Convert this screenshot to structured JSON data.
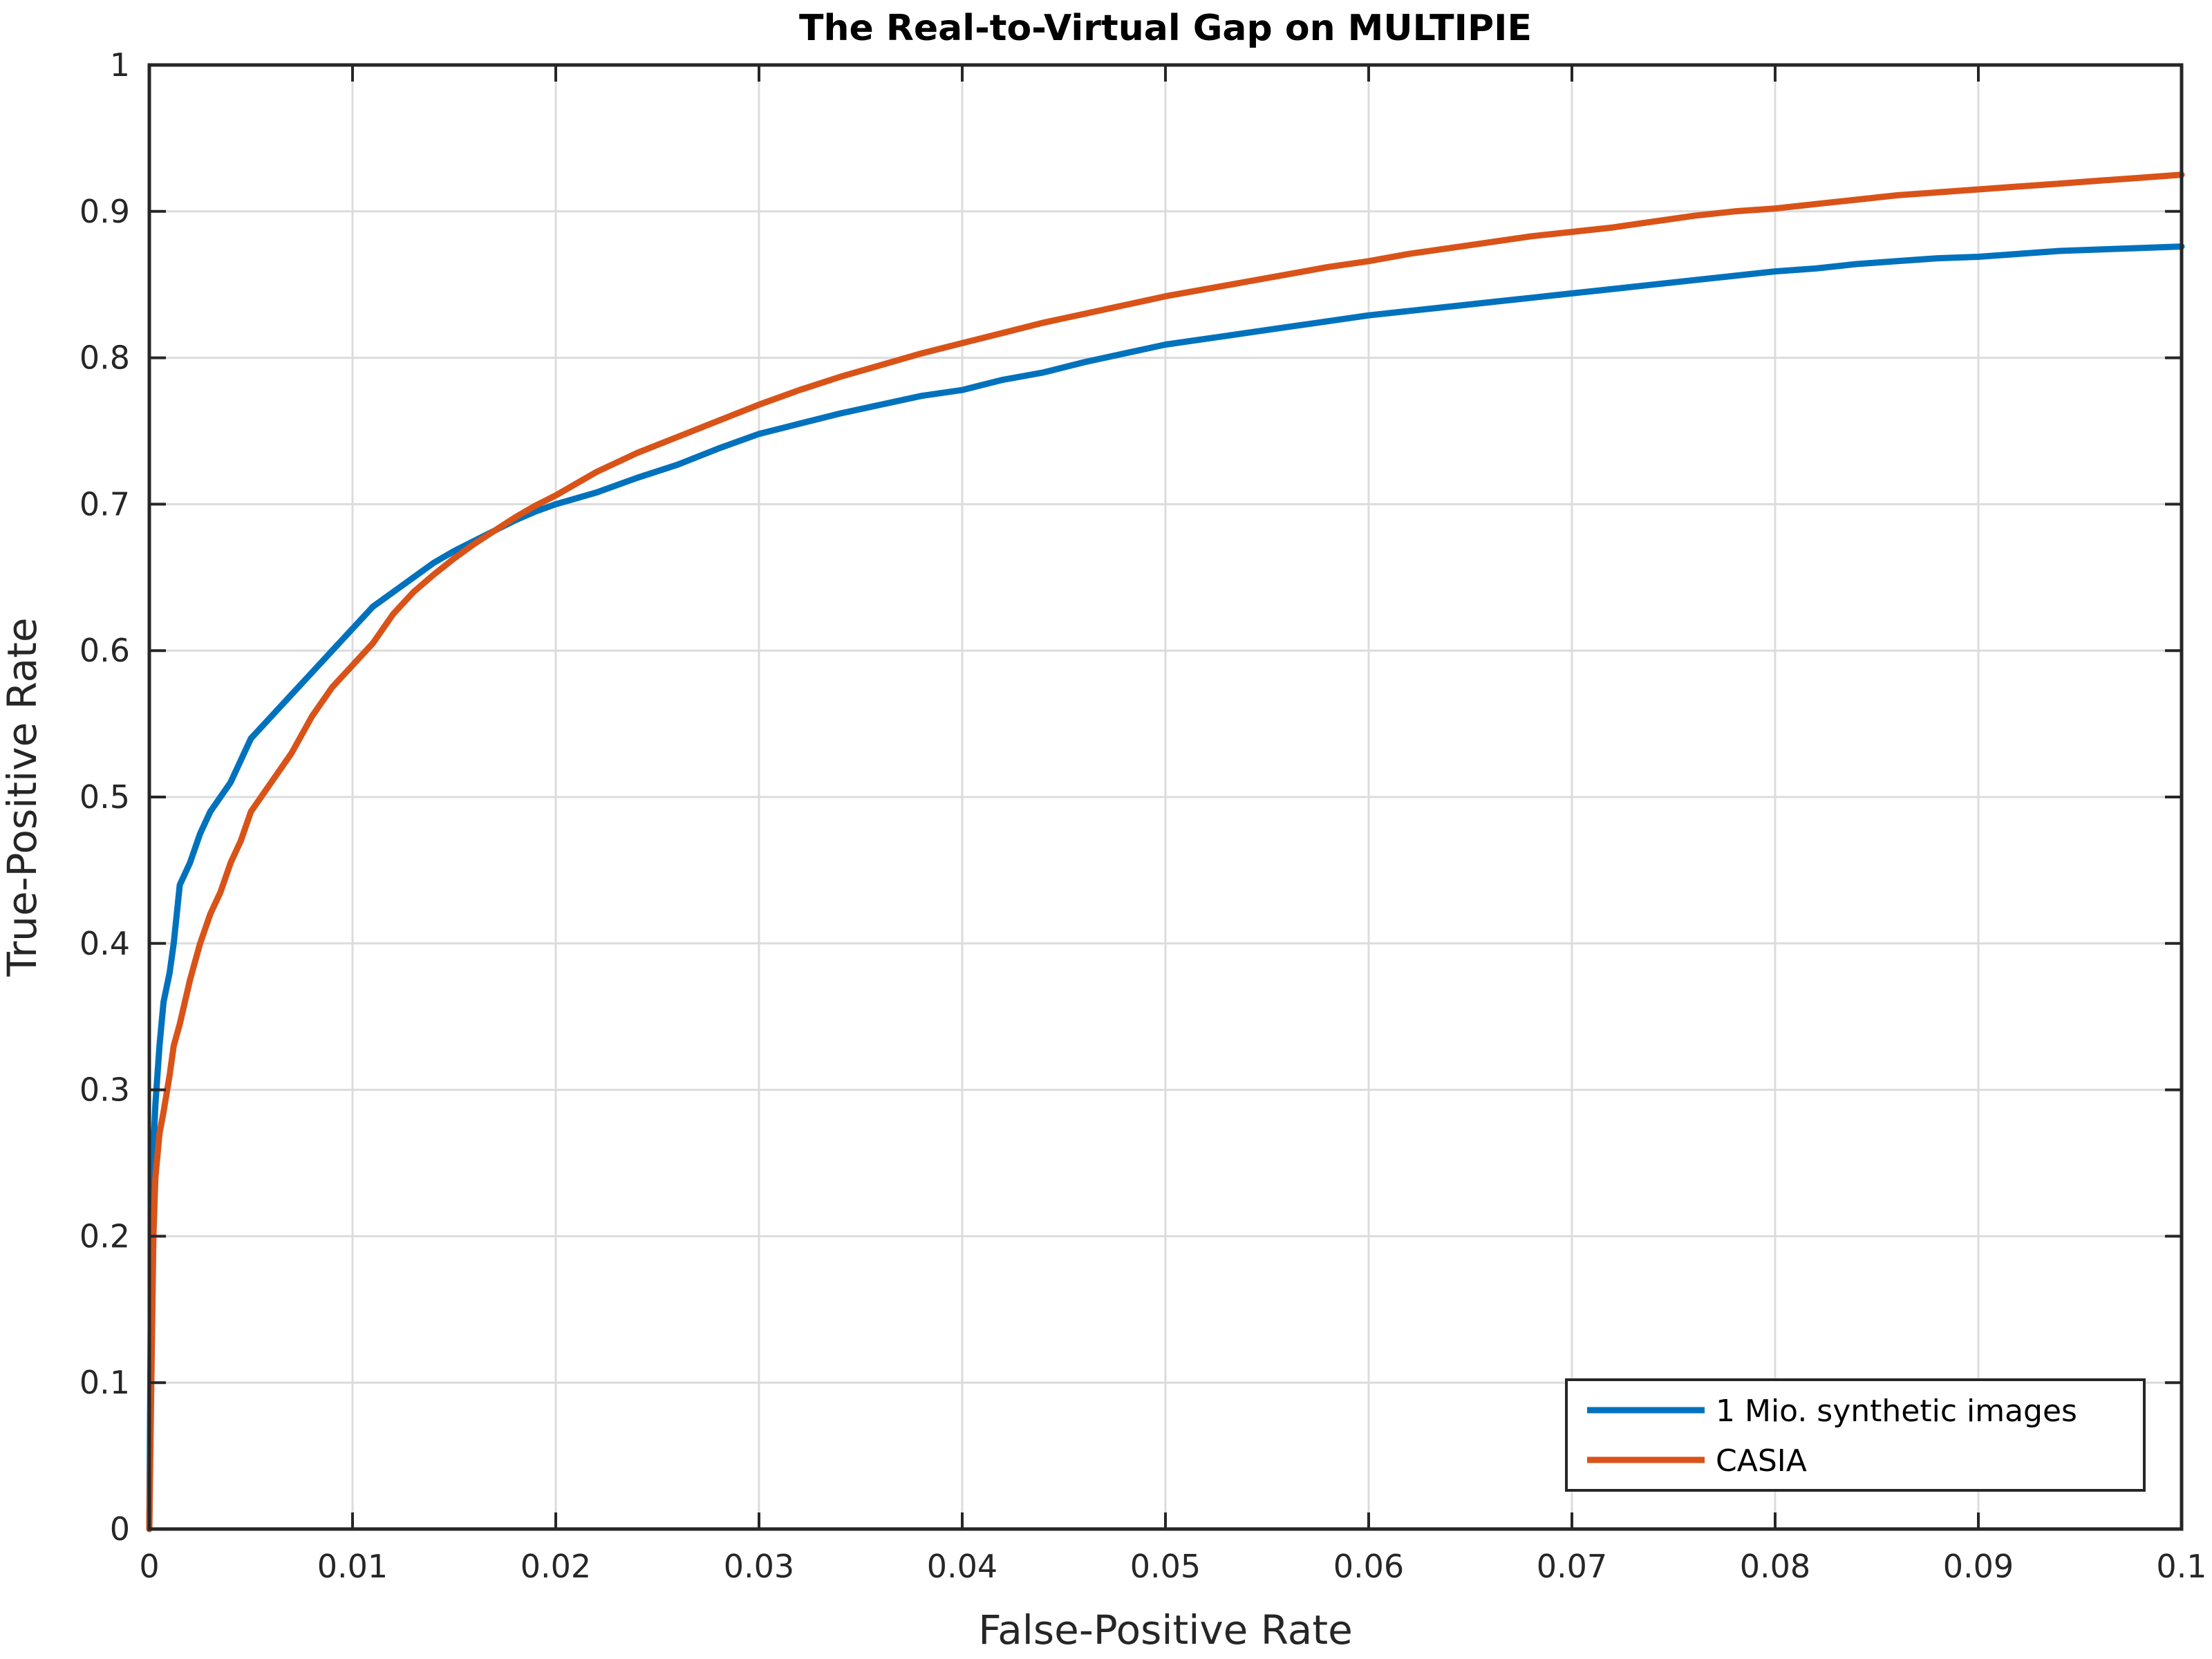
{
  "chart_data": {
    "type": "line",
    "title": "The Real-to-Virtual Gap on MULTIPIE",
    "xlabel": "False-Positive Rate",
    "ylabel": "True-Positive Rate",
    "xlim": [
      0,
      0.1
    ],
    "ylim": [
      0,
      1
    ],
    "xticks": [
      0,
      0.01,
      0.02,
      0.03,
      0.04,
      0.05,
      0.06,
      0.07,
      0.08,
      0.09,
      0.1
    ],
    "xtick_labels": [
      "0",
      "0.01",
      "0.02",
      "0.03",
      "0.04",
      "0.05",
      "0.06",
      "0.07",
      "0.08",
      "0.09",
      "0.1"
    ],
    "yticks": [
      0,
      0.1,
      0.2,
      0.3,
      0.4,
      0.5,
      0.6,
      0.7,
      0.8,
      0.9,
      1
    ],
    "ytick_labels": [
      "0",
      "0.1",
      "0.2",
      "0.3",
      "0.4",
      "0.5",
      "0.6",
      "0.7",
      "0.8",
      "0.9",
      "1"
    ],
    "grid": true,
    "legend_position": "bottom-right",
    "series": [
      {
        "name": "1 Mio. synthetic images",
        "color": "#0072BD",
        "x": [
          0,
          0.0001,
          0.0002,
          0.0003,
          0.0005,
          0.0007,
          0.001,
          0.0012,
          0.0015,
          0.002,
          0.0025,
          0.003,
          0.0035,
          0.004,
          0.0045,
          0.005,
          0.006,
          0.007,
          0.008,
          0.009,
          0.01,
          0.011,
          0.012,
          0.013,
          0.014,
          0.015,
          0.016,
          0.017,
          0.018,
          0.019,
          0.02,
          0.022,
          0.024,
          0.026,
          0.028,
          0.03,
          0.032,
          0.034,
          0.036,
          0.038,
          0.04,
          0.042,
          0.044,
          0.046,
          0.048,
          0.05,
          0.052,
          0.054,
          0.056,
          0.058,
          0.06,
          0.062,
          0.064,
          0.066,
          0.068,
          0.07,
          0.072,
          0.074,
          0.076,
          0.078,
          0.08,
          0.082,
          0.084,
          0.086,
          0.088,
          0.09,
          0.092,
          0.094,
          0.096,
          0.098,
          0.1
        ],
        "y": [
          0,
          0.2,
          0.26,
          0.29,
          0.33,
          0.36,
          0.38,
          0.4,
          0.44,
          0.455,
          0.475,
          0.49,
          0.5,
          0.51,
          0.525,
          0.54,
          0.555,
          0.57,
          0.585,
          0.6,
          0.615,
          0.63,
          0.64,
          0.65,
          0.66,
          0.668,
          0.675,
          0.682,
          0.689,
          0.695,
          0.7,
          0.708,
          0.718,
          0.727,
          0.738,
          0.748,
          0.755,
          0.762,
          0.768,
          0.774,
          0.778,
          0.785,
          0.79,
          0.797,
          0.803,
          0.809,
          0.813,
          0.817,
          0.821,
          0.825,
          0.829,
          0.832,
          0.835,
          0.838,
          0.841,
          0.844,
          0.847,
          0.85,
          0.853,
          0.856,
          0.859,
          0.861,
          0.864,
          0.866,
          0.868,
          0.869,
          0.871,
          0.873,
          0.874,
          0.875,
          0.876
        ]
      },
      {
        "name": "CASIA",
        "color": "#D95319",
        "x": [
          0,
          0.0001,
          0.0002,
          0.0003,
          0.0005,
          0.0007,
          0.001,
          0.0012,
          0.0015,
          0.002,
          0.0025,
          0.003,
          0.0035,
          0.004,
          0.0045,
          0.005,
          0.006,
          0.007,
          0.008,
          0.009,
          0.01,
          0.011,
          0.012,
          0.013,
          0.014,
          0.015,
          0.016,
          0.017,
          0.018,
          0.019,
          0.02,
          0.022,
          0.024,
          0.026,
          0.028,
          0.03,
          0.032,
          0.034,
          0.036,
          0.038,
          0.04,
          0.042,
          0.044,
          0.046,
          0.048,
          0.05,
          0.052,
          0.054,
          0.056,
          0.058,
          0.06,
          0.062,
          0.064,
          0.066,
          0.068,
          0.07,
          0.072,
          0.074,
          0.076,
          0.078,
          0.08,
          0.082,
          0.084,
          0.086,
          0.088,
          0.09,
          0.092,
          0.094,
          0.096,
          0.098,
          0.1
        ],
        "y": [
          0,
          0.1,
          0.2,
          0.24,
          0.27,
          0.285,
          0.31,
          0.33,
          0.345,
          0.375,
          0.4,
          0.42,
          0.435,
          0.455,
          0.47,
          0.49,
          0.51,
          0.53,
          0.555,
          0.575,
          0.59,
          0.605,
          0.625,
          0.64,
          0.652,
          0.663,
          0.673,
          0.682,
          0.691,
          0.699,
          0.706,
          0.722,
          0.735,
          0.746,
          0.757,
          0.768,
          0.778,
          0.787,
          0.795,
          0.803,
          0.81,
          0.817,
          0.824,
          0.83,
          0.836,
          0.842,
          0.847,
          0.852,
          0.857,
          0.862,
          0.866,
          0.871,
          0.875,
          0.879,
          0.883,
          0.886,
          0.889,
          0.893,
          0.897,
          0.9,
          0.902,
          0.905,
          0.908,
          0.911,
          0.913,
          0.915,
          0.917,
          0.919,
          0.921,
          0.923,
          0.925
        ]
      }
    ]
  }
}
